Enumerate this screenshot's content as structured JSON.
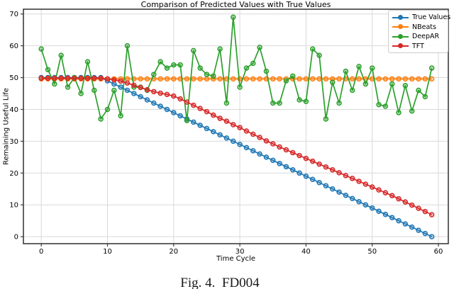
{
  "figure": {
    "title": "Comparison of Predicted Values with True Values",
    "caption": "Fig. 4.  FD004"
  },
  "colors": {
    "true_values": "#1f77b4",
    "nbeats": "#ff7f0e",
    "deepar": "#2ca02c",
    "tft": "#d62728",
    "grid": "#d9d9d9",
    "spine": "#3c3c3c",
    "legend_border": "#cccccc"
  },
  "legend": {
    "position": "upper right",
    "items": [
      {
        "label": "True Values",
        "color": "#1f77b4"
      },
      {
        "label": "NBeats",
        "color": "#ff7f0e"
      },
      {
        "label": "DeepAR",
        "color": "#2ca02c"
      },
      {
        "label": "TFT",
        "color": "#d62728"
      }
    ]
  },
  "chart_data": {
    "type": "line",
    "title": "Comparison of Predicted Values with True Values",
    "xlabel": "Time Cycle",
    "ylabel": "Remaining Useful Life",
    "xlim": [
      -2.7,
      61.5
    ],
    "ylim": [
      -2.2,
      71.5
    ],
    "x_ticks": [
      0,
      10,
      20,
      30,
      40,
      50,
      60
    ],
    "y_ticks": [
      0,
      10,
      20,
      30,
      40,
      50,
      60,
      70
    ],
    "grid": true,
    "legend_position": "upper right",
    "marker": "o",
    "x": [
      0,
      1,
      2,
      3,
      4,
      5,
      6,
      7,
      8,
      9,
      10,
      11,
      12,
      13,
      14,
      15,
      16,
      17,
      18,
      19,
      20,
      21,
      22,
      23,
      24,
      25,
      26,
      27,
      28,
      29,
      30,
      31,
      32,
      33,
      34,
      35,
      36,
      37,
      38,
      39,
      40,
      41,
      42,
      43,
      44,
      45,
      46,
      47,
      48,
      49,
      50,
      51,
      52,
      53,
      54,
      55,
      56,
      57,
      58,
      59
    ],
    "series": [
      {
        "name": "True Values",
        "color": "#1f77b4",
        "values": [
          50,
          50,
          50,
          50,
          50,
          50,
          50,
          50,
          50,
          50,
          49,
          48,
          47,
          46,
          45,
          44,
          43,
          42,
          41,
          40,
          39,
          38,
          37,
          36,
          35,
          34,
          33,
          32,
          31,
          30,
          29,
          28,
          27,
          26,
          25,
          24,
          23,
          22,
          21,
          20,
          19,
          18,
          17,
          16,
          15,
          14,
          13,
          12,
          11,
          10,
          9,
          8,
          7,
          6,
          5,
          4,
          3,
          2,
          1,
          0
        ]
      },
      {
        "name": "NBeats",
        "color": "#ff7f0e",
        "values": [
          49.6,
          49.6,
          49.6,
          49.6,
          49.6,
          49.6,
          49.6,
          49.6,
          49.6,
          49.6,
          49.6,
          49.6,
          49.6,
          49.6,
          49.6,
          49.6,
          49.6,
          49.6,
          49.6,
          49.6,
          49.6,
          49.6,
          49.6,
          49.6,
          49.6,
          49.6,
          49.6,
          49.6,
          49.6,
          49.6,
          49.6,
          49.6,
          49.6,
          49.6,
          49.6,
          49.6,
          49.6,
          49.6,
          49.6,
          49.6,
          49.6,
          49.6,
          49.6,
          49.6,
          49.6,
          49.6,
          49.6,
          49.6,
          49.6,
          49.6,
          49.6,
          49.6,
          49.6,
          49.6,
          49.6,
          49.6,
          49.6,
          49.6,
          49.6,
          49.6
        ]
      },
      {
        "name": "DeepAR",
        "color": "#2ca02c",
        "values": [
          59,
          52.5,
          48,
          57,
          47,
          50,
          45,
          55,
          46,
          37,
          40,
          46,
          38,
          60,
          47,
          47,
          46,
          51,
          55,
          53,
          54,
          54,
          36.5,
          58.5,
          53,
          51,
          50.5,
          59,
          42,
          69,
          47,
          53,
          54.5,
          59.5,
          52,
          42,
          42,
          49,
          50.5,
          43,
          42.5,
          59,
          57,
          37,
          48.5,
          42,
          52,
          46,
          53.5,
          48,
          53,
          41.5,
          41,
          48,
          39,
          47.5,
          39.5,
          46,
          44,
          53
        ]
      },
      {
        "name": "TFT",
        "color": "#d62728",
        "values": [
          49.8,
          49.8,
          49.8,
          49.8,
          49.8,
          49.8,
          49.8,
          49.8,
          49.8,
          49.8,
          49.6,
          49.3,
          48.9,
          48.3,
          47.6,
          46.9,
          46.2,
          45.6,
          45.1,
          44.7,
          44.2,
          43.3,
          42.3,
          41.3,
          40.3,
          39.3,
          38.2,
          37.2,
          36.3,
          35.2,
          34.3,
          33.2,
          32.2,
          31.2,
          30.1,
          29.2,
          28.2,
          27.3,
          26.4,
          25.5,
          24.6,
          23.7,
          22.8,
          21.9,
          21.0,
          20.1,
          19.2,
          18.3,
          17.4,
          16.5,
          15.6,
          14.7,
          13.8,
          12.9,
          11.9,
          10.9,
          9.9,
          8.9,
          7.9,
          6.9
        ]
      }
    ]
  }
}
